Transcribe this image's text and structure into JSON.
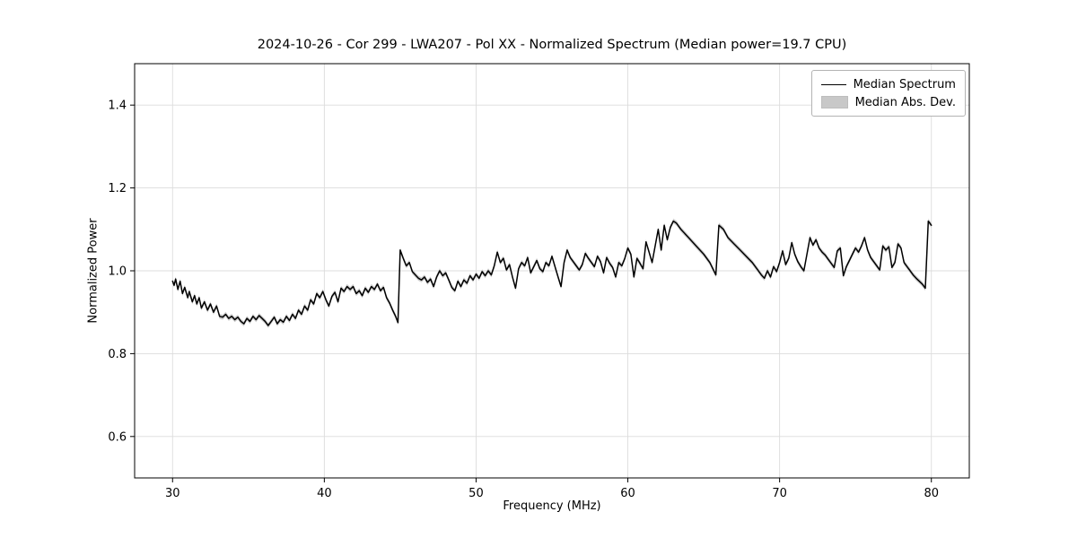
{
  "colors": {
    "line": "#000000",
    "band": "#c8c8c8",
    "grid": "#dcdcdc",
    "frame": "#000000",
    "background": "#ffffff"
  },
  "chart_data": {
    "type": "line",
    "title": "2024-10-26 - Cor 299 - LWA207 - Pol XX - Normalized Spectrum (Median power=19.7 CPU)",
    "xlabel": "Frequency (MHz)",
    "ylabel": "Normalized Power",
    "xlim": [
      27.5,
      82.5
    ],
    "ylim": [
      0.5,
      1.5
    ],
    "xticks": [
      30,
      40,
      50,
      60,
      70,
      80
    ],
    "yticks": [
      0.6,
      0.8,
      1.0,
      1.2,
      1.4
    ],
    "grid": true,
    "legend_position": "upper right",
    "series": [
      {
        "name": "Median Spectrum",
        "type": "line",
        "color": "#000000",
        "x": [
          30.0,
          30.1,
          30.2,
          30.35,
          30.5,
          30.65,
          30.8,
          31.0,
          31.1,
          31.3,
          31.45,
          31.6,
          31.75,
          31.9,
          32.1,
          32.3,
          32.5,
          32.7,
          32.9,
          33.1,
          33.3,
          33.5,
          33.7,
          33.9,
          34.1,
          34.3,
          34.5,
          34.7,
          34.9,
          35.1,
          35.3,
          35.5,
          35.7,
          35.9,
          36.1,
          36.3,
          36.5,
          36.7,
          36.9,
          37.1,
          37.3,
          37.5,
          37.7,
          37.9,
          38.1,
          38.3,
          38.5,
          38.7,
          38.9,
          39.1,
          39.3,
          39.5,
          39.7,
          39.9,
          40.1,
          40.3,
          40.5,
          40.7,
          40.9,
          41.1,
          41.3,
          41.5,
          41.7,
          41.9,
          42.1,
          42.3,
          42.5,
          42.7,
          42.9,
          43.1,
          43.3,
          43.5,
          43.7,
          43.9,
          44.1,
          44.3,
          44.5,
          44.7,
          44.85,
          45.0,
          45.2,
          45.4,
          45.6,
          45.8,
          46.0,
          46.2,
          46.4,
          46.6,
          46.8,
          47.0,
          47.2,
          47.4,
          47.6,
          47.8,
          48.0,
          48.2,
          48.4,
          48.6,
          48.8,
          49.0,
          49.2,
          49.4,
          49.6,
          49.8,
          50.0,
          50.2,
          50.4,
          50.6,
          50.8,
          51.0,
          51.2,
          51.4,
          51.6,
          51.8,
          52.0,
          52.2,
          52.4,
          52.6,
          52.8,
          53.0,
          53.2,
          53.4,
          53.6,
          53.8,
          54.0,
          54.2,
          54.4,
          54.6,
          54.8,
          55.0,
          55.2,
          55.4,
          55.6,
          55.8,
          56.0,
          56.2,
          56.4,
          56.6,
          56.8,
          57.0,
          57.2,
          57.4,
          57.6,
          57.8,
          58.0,
          58.2,
          58.4,
          58.6,
          58.8,
          59.0,
          59.2,
          59.4,
          59.6,
          59.8,
          60.0,
          60.2,
          60.4,
          60.6,
          60.8,
          61.0,
          61.2,
          61.4,
          61.6,
          61.8,
          62.0,
          62.2,
          62.4,
          62.6,
          62.8,
          63.0,
          63.2,
          63.5,
          64.0,
          64.5,
          65.0,
          65.4,
          65.8,
          66.0,
          66.3,
          66.6,
          67.0,
          67.4,
          67.8,
          68.2,
          68.5,
          68.8,
          69.0,
          69.2,
          69.4,
          69.6,
          69.8,
          70.0,
          70.2,
          70.4,
          70.6,
          70.8,
          71.0,
          71.2,
          71.4,
          71.6,
          71.8,
          72.0,
          72.2,
          72.4,
          72.6,
          72.8,
          73.0,
          73.2,
          73.4,
          73.6,
          73.8,
          74.0,
          74.2,
          74.4,
          74.6,
          74.8,
          75.0,
          75.2,
          75.4,
          75.6,
          75.8,
          76.0,
          76.2,
          76.4,
          76.6,
          76.8,
          77.0,
          77.2,
          77.4,
          77.6,
          77.8,
          78.0,
          78.2,
          78.4,
          78.6,
          78.8,
          79.0,
          79.2,
          79.4,
          79.6,
          79.8,
          80.0
        ],
        "y": [
          0.975,
          0.965,
          0.98,
          0.955,
          0.975,
          0.945,
          0.96,
          0.935,
          0.95,
          0.925,
          0.94,
          0.92,
          0.935,
          0.91,
          0.925,
          0.905,
          0.92,
          0.9,
          0.915,
          0.89,
          0.888,
          0.895,
          0.885,
          0.89,
          0.882,
          0.888,
          0.878,
          0.872,
          0.885,
          0.878,
          0.89,
          0.882,
          0.892,
          0.885,
          0.878,
          0.868,
          0.878,
          0.888,
          0.872,
          0.882,
          0.876,
          0.89,
          0.88,
          0.895,
          0.885,
          0.905,
          0.895,
          0.915,
          0.905,
          0.93,
          0.92,
          0.945,
          0.935,
          0.95,
          0.93,
          0.915,
          0.938,
          0.948,
          0.925,
          0.958,
          0.95,
          0.962,
          0.955,
          0.962,
          0.945,
          0.952,
          0.94,
          0.958,
          0.948,
          0.962,
          0.955,
          0.968,
          0.952,
          0.96,
          0.935,
          0.922,
          0.905,
          0.89,
          0.875,
          1.05,
          1.03,
          1.012,
          1.02,
          0.998,
          0.99,
          0.982,
          0.978,
          0.985,
          0.972,
          0.98,
          0.962,
          0.985,
          1.0,
          0.988,
          0.995,
          0.978,
          0.96,
          0.952,
          0.975,
          0.962,
          0.978,
          0.97,
          0.988,
          0.978,
          0.992,
          0.982,
          0.998,
          0.988,
          1.0,
          0.99,
          1.012,
          1.045,
          1.02,
          1.03,
          1.002,
          1.015,
          0.985,
          0.958,
          1.005,
          1.02,
          1.012,
          1.032,
          0.995,
          1.01,
          1.025,
          1.005,
          0.998,
          1.02,
          1.012,
          1.035,
          1.01,
          0.985,
          0.962,
          1.02,
          1.05,
          1.032,
          1.022,
          1.012,
          1.002,
          1.015,
          1.042,
          1.03,
          1.02,
          1.01,
          1.035,
          1.022,
          0.995,
          1.032,
          1.018,
          1.008,
          0.985,
          1.02,
          1.012,
          1.03,
          1.055,
          1.04,
          0.985,
          1.03,
          1.018,
          1.005,
          1.07,
          1.045,
          1.02,
          1.06,
          1.1,
          1.05,
          1.11,
          1.075,
          1.105,
          1.12,
          1.115,
          1.1,
          1.08,
          1.06,
          1.04,
          1.02,
          0.99,
          1.11,
          1.1,
          1.08,
          1.065,
          1.05,
          1.035,
          1.02,
          1.005,
          0.99,
          0.982,
          1.0,
          0.985,
          1.01,
          0.998,
          1.02,
          1.048,
          1.015,
          1.03,
          1.068,
          1.04,
          1.022,
          1.01,
          1.0,
          1.04,
          1.08,
          1.062,
          1.075,
          1.055,
          1.045,
          1.038,
          1.028,
          1.018,
          1.008,
          1.048,
          1.055,
          0.988,
          1.01,
          1.025,
          1.04,
          1.055,
          1.045,
          1.06,
          1.08,
          1.05,
          1.032,
          1.022,
          1.012,
          1.002,
          1.06,
          1.05,
          1.058,
          1.008,
          1.02,
          1.065,
          1.055,
          1.02,
          1.01,
          1.0,
          0.99,
          0.982,
          0.975,
          0.968,
          0.958,
          1.12,
          1.11
        ]
      },
      {
        "name": "Median Abs. Dev.",
        "type": "band",
        "color": "#c8c8c8",
        "half_width": 0.006
      }
    ]
  },
  "legend": {
    "items": [
      {
        "label": "Median Spectrum",
        "swatch": "line"
      },
      {
        "label": "Median Abs. Dev.",
        "swatch": "patch"
      }
    ]
  }
}
